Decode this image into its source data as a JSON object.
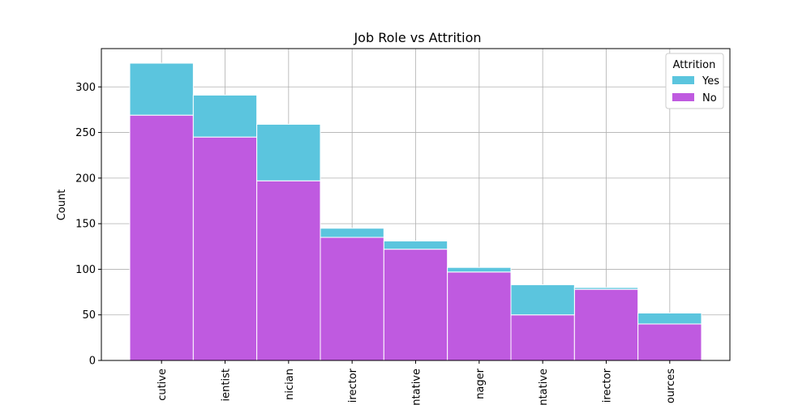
{
  "chart_data": {
    "type": "bar",
    "stacked": true,
    "title": "Job Role vs Attrition",
    "xlabel": "",
    "ylabel": "Count",
    "ylim": [
      0,
      342
    ],
    "yticks": [
      0,
      50,
      100,
      150,
      200,
      250,
      300
    ],
    "grid": true,
    "categories": [
      "cutive",
      "ientist",
      "nician",
      "irector",
      "ntative",
      "nager",
      "ntative",
      "irector",
      "ources"
    ],
    "series": [
      {
        "name": "No",
        "color": "#bf5ae0",
        "values": [
          269,
          245,
          197,
          135,
          122,
          97,
          50,
          78,
          40
        ]
      },
      {
        "name": "Yes",
        "color": "#5bc5de",
        "values": [
          57,
          46,
          62,
          10,
          9,
          5,
          33,
          2,
          12
        ]
      }
    ],
    "legend": {
      "title": "Attrition",
      "position": "top-right",
      "entries": [
        "Yes",
        "No"
      ]
    }
  }
}
